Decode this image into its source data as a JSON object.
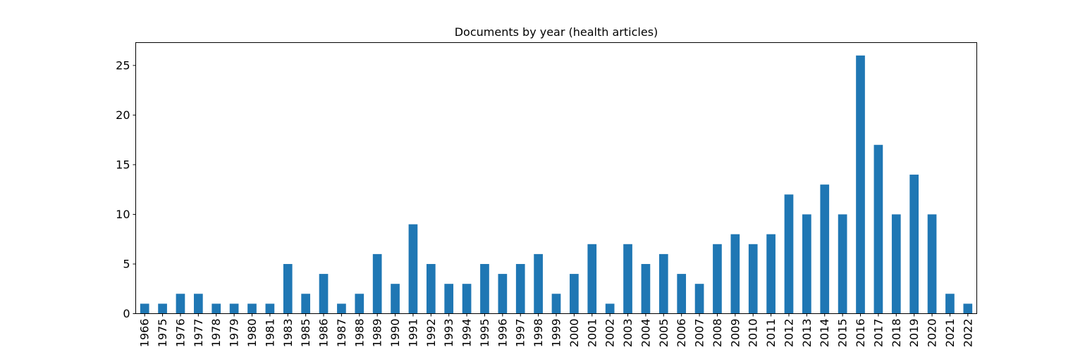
{
  "chart_data": {
    "type": "bar",
    "title": "Documents by year (health articles)",
    "xlabel": "",
    "ylabel": "",
    "categories": [
      "1966",
      "1975",
      "1976",
      "1977",
      "1978",
      "1979",
      "1980",
      "1981",
      "1983",
      "1985",
      "1986",
      "1987",
      "1988",
      "1989",
      "1990",
      "1991",
      "1992",
      "1993",
      "1994",
      "1995",
      "1996",
      "1997",
      "1998",
      "1999",
      "2000",
      "2001",
      "2002",
      "2003",
      "2004",
      "2005",
      "2006",
      "2007",
      "2008",
      "2009",
      "2010",
      "2011",
      "2012",
      "2013",
      "2014",
      "2015",
      "2016",
      "2017",
      "2018",
      "2019",
      "2020",
      "2021",
      "2022"
    ],
    "values": [
      1,
      1,
      2,
      2,
      1,
      1,
      1,
      1,
      5,
      2,
      4,
      1,
      2,
      6,
      3,
      9,
      5,
      3,
      3,
      5,
      4,
      5,
      6,
      2,
      4,
      7,
      1,
      7,
      5,
      6,
      4,
      3,
      7,
      8,
      7,
      8,
      12,
      10,
      13,
      10,
      26,
      17,
      10,
      14,
      10,
      2,
      1
    ],
    "ylim": [
      0,
      27.3
    ],
    "yticks": [
      0,
      5,
      10,
      15,
      20,
      25
    ],
    "bar_color": "#1f77b4",
    "grid": false,
    "legend": "none"
  }
}
